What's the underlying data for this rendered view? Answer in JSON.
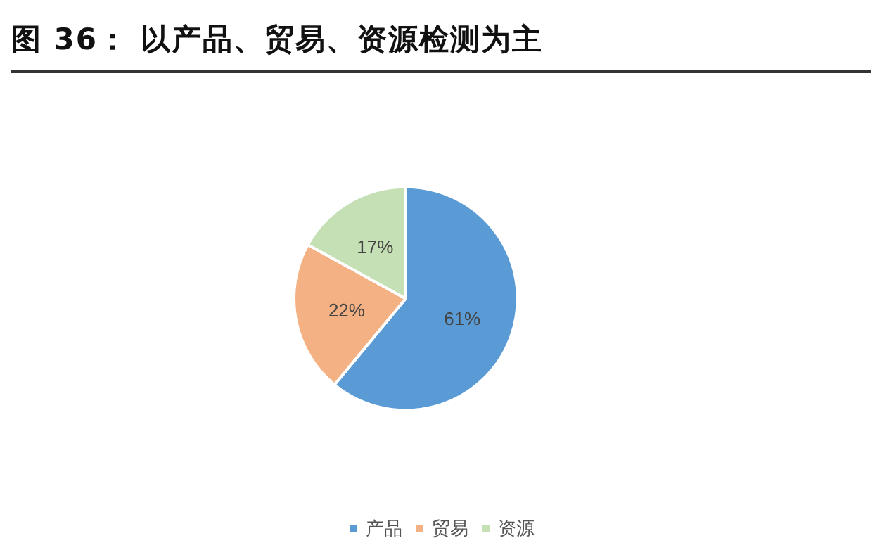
{
  "chart_data": {
    "type": "pie",
    "title": "图 36： 以产品、贸易、资源检测为主",
    "categories": [
      "产品",
      "贸易",
      "资源"
    ],
    "values": [
      61,
      22,
      17
    ],
    "colors": [
      "#5b9bd5",
      "#f4b183",
      "#c5e0b4"
    ],
    "value_labels": [
      "61%",
      "22%",
      "17%"
    ],
    "legend": "bottom"
  }
}
